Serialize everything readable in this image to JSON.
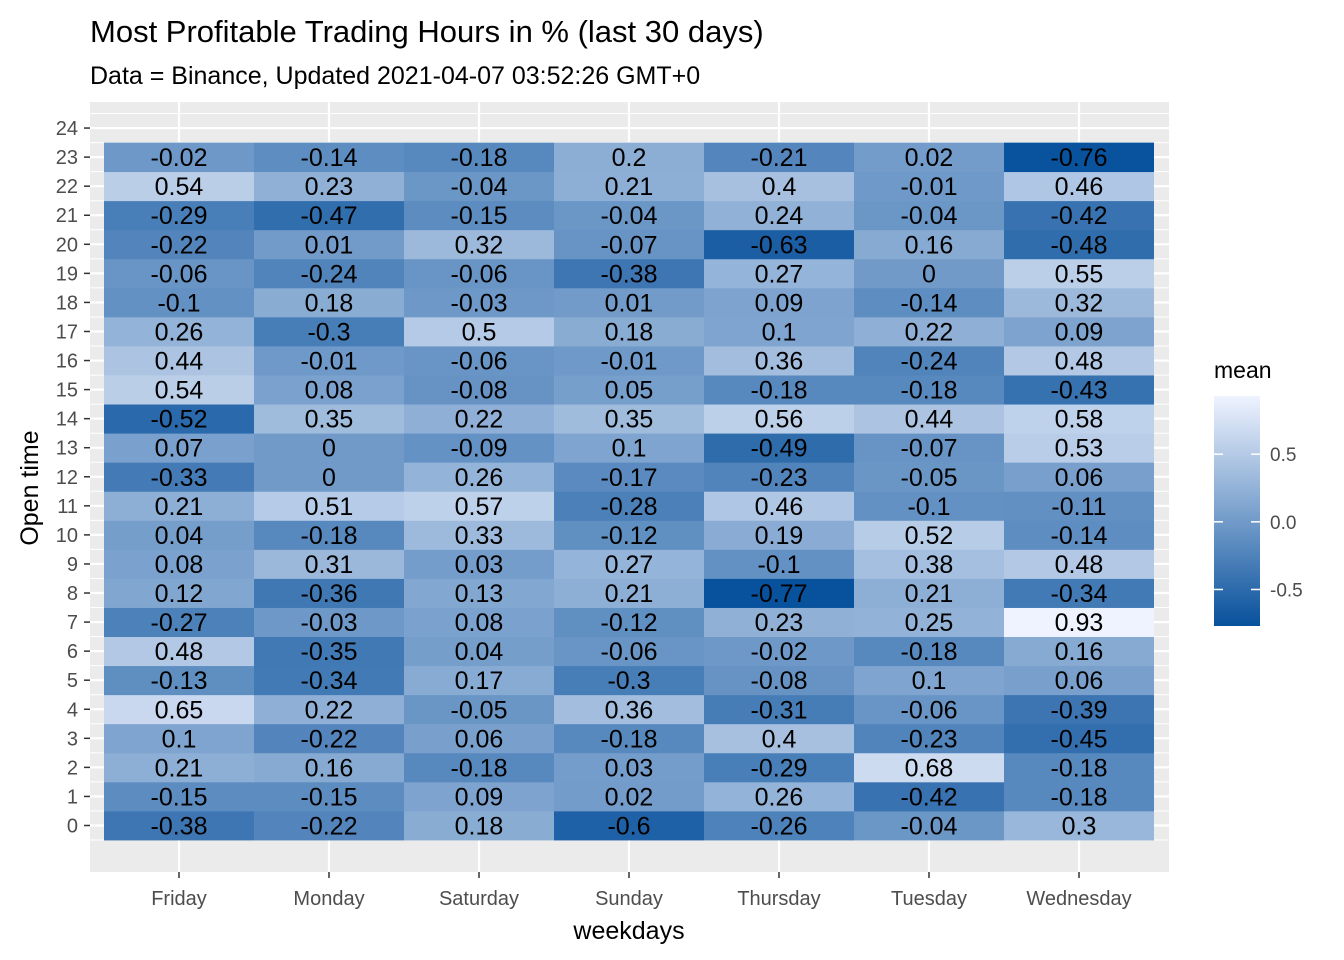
{
  "chart_data": {
    "type": "heatmap",
    "title": "Most Profitable Trading Hours in % (last 30 days)",
    "subtitle": "Data = Binance, Updated 2021-04-07 03:52:26 GMT+0",
    "xlabel": "weekdays",
    "ylabel": "Open time",
    "x_categories": [
      "Friday",
      "Monday",
      "Saturday",
      "Sunday",
      "Thursday",
      "Tuesday",
      "Wednesday"
    ],
    "y_ticks": [
      0,
      1,
      2,
      3,
      4,
      5,
      6,
      7,
      8,
      9,
      10,
      11,
      12,
      13,
      14,
      15,
      16,
      17,
      18,
      19,
      20,
      21,
      22,
      23,
      24
    ],
    "y_categories": [
      0,
      1,
      2,
      3,
      4,
      5,
      6,
      7,
      8,
      9,
      10,
      11,
      12,
      13,
      14,
      15,
      16,
      17,
      18,
      19,
      20,
      21,
      22,
      23
    ],
    "values": [
      [
        "-0.38",
        "-0.22",
        "0.18",
        "-0.6",
        "-0.26",
        "-0.04",
        "0.3"
      ],
      [
        "-0.15",
        "-0.15",
        "0.09",
        "0.02",
        "0.26",
        "-0.42",
        "-0.18"
      ],
      [
        "0.21",
        "0.16",
        "-0.18",
        "0.03",
        "-0.29",
        "0.68",
        "-0.18"
      ],
      [
        "0.1",
        "-0.22",
        "0.06",
        "-0.18",
        "0.4",
        "-0.23",
        "-0.45"
      ],
      [
        "0.65",
        "0.22",
        "-0.05",
        "0.36",
        "-0.31",
        "-0.06",
        "-0.39"
      ],
      [
        "-0.13",
        "-0.34",
        "0.17",
        "-0.3",
        "-0.08",
        "0.1",
        "0.06"
      ],
      [
        "0.48",
        "-0.35",
        "0.04",
        "-0.06",
        "-0.02",
        "-0.18",
        "0.16"
      ],
      [
        "-0.27",
        "-0.03",
        "0.08",
        "-0.12",
        "0.23",
        "0.25",
        "0.93"
      ],
      [
        "0.12",
        "-0.36",
        "0.13",
        "0.21",
        "-0.77",
        "0.21",
        "-0.34"
      ],
      [
        "0.08",
        "0.31",
        "0.03",
        "0.27",
        "-0.1",
        "0.38",
        "0.48"
      ],
      [
        "0.04",
        "-0.18",
        "0.33",
        "-0.12",
        "0.19",
        "0.52",
        "-0.14"
      ],
      [
        "0.21",
        "0.51",
        "0.57",
        "-0.28",
        "0.46",
        "-0.1",
        "-0.11"
      ],
      [
        "-0.33",
        "0",
        "0.26",
        "-0.17",
        "-0.23",
        "-0.05",
        "0.06"
      ],
      [
        "0.07",
        "0",
        "-0.09",
        "0.1",
        "-0.49",
        "-0.07",
        "0.53"
      ],
      [
        "-0.52",
        "0.35",
        "0.22",
        "0.35",
        "0.56",
        "0.44",
        "0.58"
      ],
      [
        "0.54",
        "0.08",
        "-0.08",
        "0.05",
        "-0.18",
        "-0.18",
        "-0.43"
      ],
      [
        "0.44",
        "-0.01",
        "-0.06",
        "-0.01",
        "0.36",
        "-0.24",
        "0.48"
      ],
      [
        "0.26",
        "-0.3",
        "0.5",
        "0.18",
        "0.1",
        "0.22",
        "0.09"
      ],
      [
        "-0.1",
        "0.18",
        "-0.03",
        "0.01",
        "0.09",
        "-0.14",
        "0.32"
      ],
      [
        "-0.06",
        "-0.24",
        "-0.06",
        "-0.38",
        "0.27",
        "0",
        "0.55"
      ],
      [
        "-0.22",
        "0.01",
        "0.32",
        "-0.07",
        "-0.63",
        "0.16",
        "-0.48"
      ],
      [
        "-0.29",
        "-0.47",
        "-0.15",
        "-0.04",
        "0.24",
        "-0.04",
        "-0.42"
      ],
      [
        "0.54",
        "0.23",
        "-0.04",
        "0.21",
        "0.4",
        "-0.01",
        "0.46"
      ],
      [
        "-0.02",
        "-0.14",
        "-0.18",
        "0.2",
        "-0.21",
        "0.02",
        "-0.76"
      ]
    ],
    "ylim": [
      -0.5,
      24.5
    ],
    "grid": true,
    "legend": {
      "title": "mean",
      "position": "right",
      "ticks": [
        "0.5",
        "0.0",
        "-0.5"
      ],
      "range": [
        -0.77,
        0.93
      ],
      "low_color": "#08519c",
      "high_color": "#eff3ff"
    },
    "colors": {
      "panel_background": "#ebebeb",
      "grid": "#ffffff"
    }
  }
}
